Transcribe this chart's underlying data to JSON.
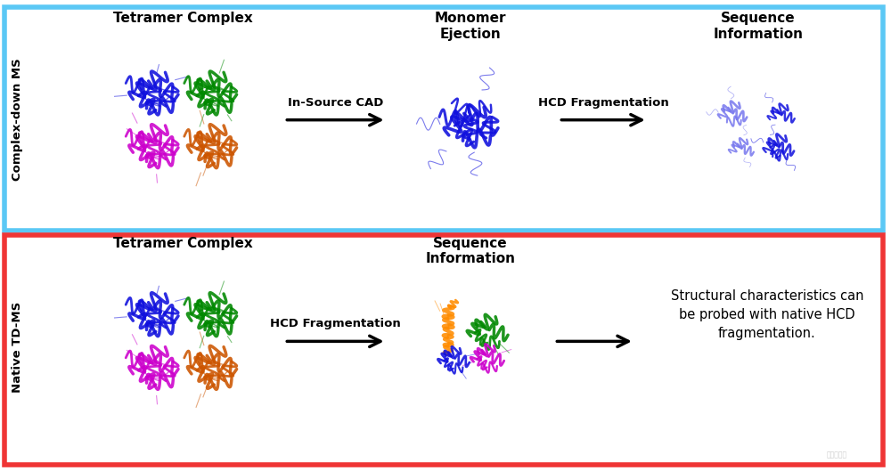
{
  "top_box_color": "#5BC8F5",
  "bottom_box_color": "#EF3535",
  "bg_color": "#ffffff",
  "top_label": "Complex-down MS",
  "bottom_label": "Native TD-MS",
  "top_title": "Tetramer Complex",
  "bottom_title": "Tetramer Complex",
  "top_mid_title": "Monomer\nEjection",
  "top_right_title": "Sequence\nInformation",
  "bottom_mid_title": "Sequence\nInformation",
  "top_arrow1_label": "In-Source CAD",
  "top_arrow2_label": "HCD Fragmentation",
  "bottom_arrow1_label": "HCD Fragmentation",
  "bottom_text": "Structural characteristics can\nbe probed with native HCD\nfragmentation.",
  "protein_colors": [
    "#1010DD",
    "#008800",
    "#CC00CC",
    "#CC5500"
  ],
  "monomer_color": "#1010DD",
  "fragment_colors_top": [
    "#7777EE",
    "#1010DD"
  ],
  "fragment_colors_bottom": [
    "#FF8C00",
    "#008800",
    "#1010DD",
    "#CC00CC"
  ],
  "watermark": "仪器信息网"
}
